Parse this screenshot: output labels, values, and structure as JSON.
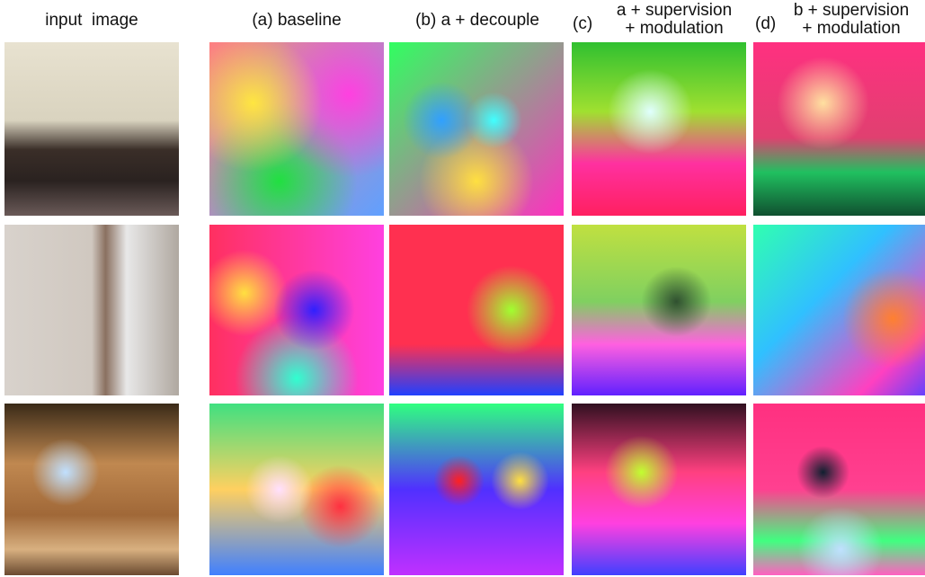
{
  "figure": {
    "columns": [
      {
        "title": "input  image"
      },
      {
        "title": "(a) baseline"
      },
      {
        "title": "(b) a + decouple"
      },
      {
        "label": "(c)",
        "lines": [
          "a + supervision",
          "+ modulation"
        ]
      },
      {
        "label": "(d)",
        "lines": [
          "b + supervision",
          "+ modulation"
        ]
      }
    ]
  }
}
